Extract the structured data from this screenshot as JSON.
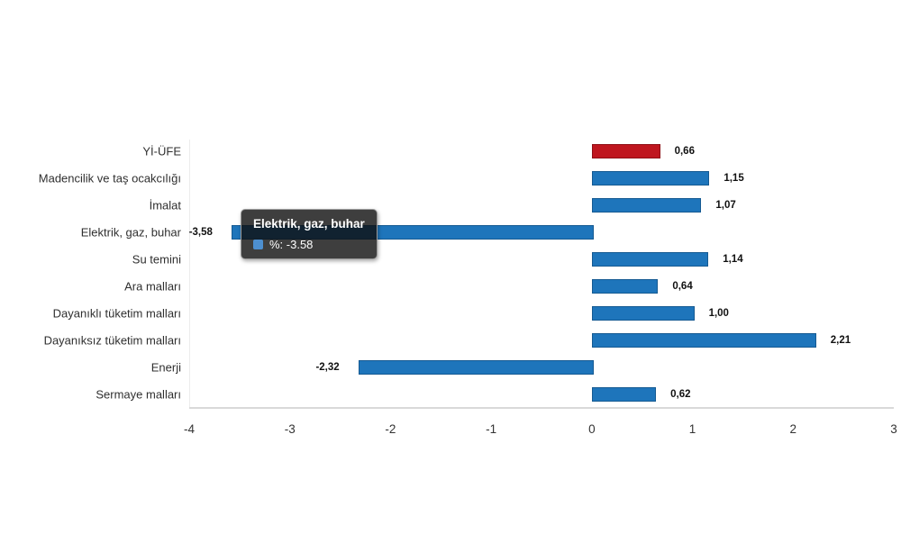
{
  "chart_data": {
    "type": "bar",
    "orientation": "horizontal",
    "title": "",
    "xlabel": "",
    "ylabel": "",
    "categories": [
      "Yİ-ÜFE",
      "Madencilik ve taş ocakcılığı",
      "İmalat",
      "Elektrik, gaz, buhar",
      "Su temini",
      "Ara malları",
      "Dayanıklı tüketim malları",
      "Dayanıksız tüketim malları",
      "Enerji",
      "Sermaye malları"
    ],
    "values": [
      0.66,
      1.15,
      1.07,
      -3.58,
      1.14,
      0.64,
      1.0,
      2.21,
      -2.32,
      0.62
    ],
    "value_labels": [
      "0,66",
      "1,15",
      "1,07",
      "-3,58",
      "1,14",
      "0,64",
      "1,00",
      "2,21",
      "-2,32",
      "0,62"
    ],
    "xlim": [
      -4,
      3
    ],
    "xticks": [
      -4,
      -3,
      -2,
      -1,
      0,
      1,
      2,
      3
    ],
    "xtick_labels": [
      "-4",
      "-3",
      "-2",
      "-1",
      "0",
      "1",
      "2",
      "3"
    ],
    "grid": false,
    "legend": false,
    "bar_color": "#1e75bb",
    "bar_border_color": "#155a92",
    "highlight_index": 0,
    "highlight_color": "#bf161f",
    "highlight_border_color": "#8f0f16"
  },
  "tooltip": {
    "title": "Elektrik, gaz, buhar",
    "value_text": "%: -3.58",
    "swatch_color": "#4d8fd0",
    "target_category": "Elektrik, gaz, buhar"
  },
  "colors": {
    "background": "#ffffff",
    "axis_line": "#d9d9d9",
    "plot_border": "#ececec",
    "category_text": "#2f2f2f",
    "value_text": "#111111",
    "tick_text": "#333333",
    "tooltip_bg": "rgba(14,14,14,0.80)",
    "tooltip_border": "#9a9a9a",
    "tooltip_text": "#ffffff"
  }
}
